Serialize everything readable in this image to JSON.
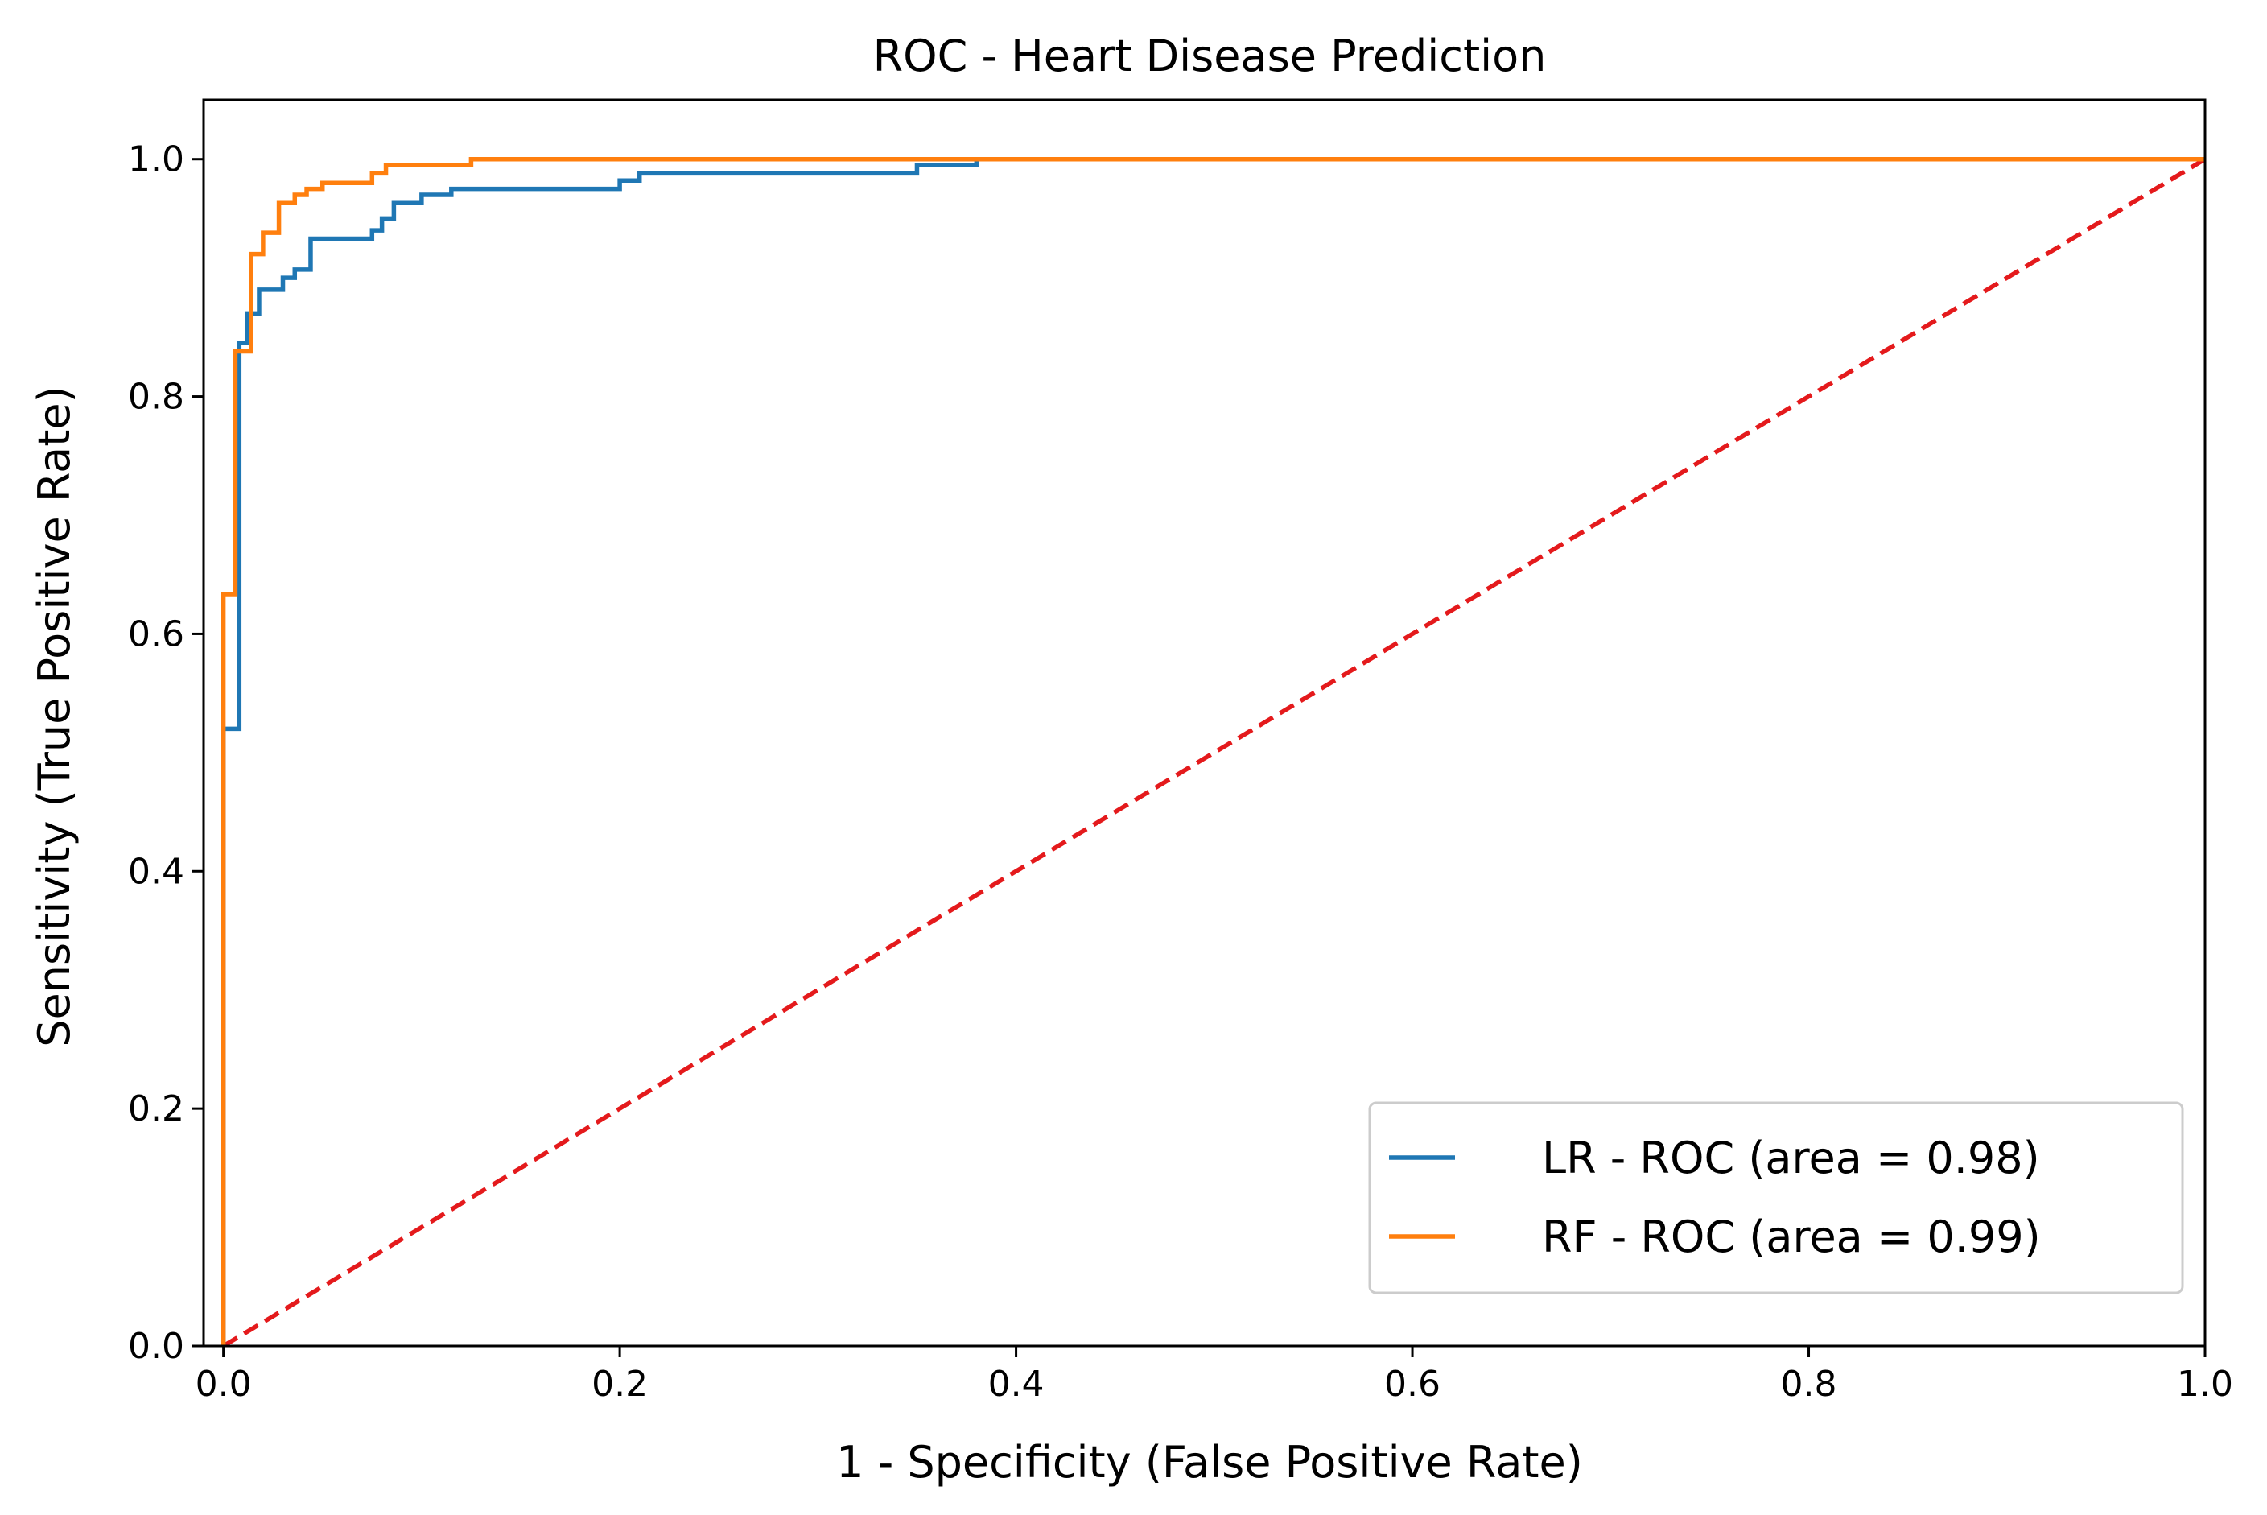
{
  "chart_data": {
    "type": "line",
    "title": "ROC - Heart Disease Prediction",
    "xlabel": "1 - Specificity (False Positive Rate)",
    "ylabel": "Sensitivity (True Positive Rate)",
    "xlim": [
      -0.01,
      1.0
    ],
    "ylim": [
      0.0,
      1.05
    ],
    "xticks": [
      0.0,
      0.2,
      0.4,
      0.6,
      0.8,
      1.0
    ],
    "xtick_labels": [
      "0.0",
      "0.2",
      "0.4",
      "0.6",
      "0.8",
      "1.0"
    ],
    "yticks": [
      0.0,
      0.2,
      0.4,
      0.6,
      0.8,
      1.0
    ],
    "ytick_labels": [
      "0.0",
      "0.2",
      "0.4",
      "0.6",
      "0.8",
      "1.0"
    ],
    "grid": false,
    "legend_position": "lower-right",
    "series": [
      {
        "name": "LR - ROC (area = 0.98)",
        "color": "#1f77b4",
        "style": "solid",
        "x": [
          0.0,
          0.0,
          0.0,
          0.008,
          0.008,
          0.012,
          0.012,
          0.018,
          0.018,
          0.022,
          0.022,
          0.03,
          0.03,
          0.036,
          0.036,
          0.044,
          0.044,
          0.075,
          0.075,
          0.08,
          0.08,
          0.086,
          0.086,
          0.1,
          0.1,
          0.115,
          0.115,
          0.2,
          0.2,
          0.21,
          0.21,
          0.35,
          0.35,
          0.38,
          0.38,
          1.0
        ],
        "y": [
          0.0,
          0.52,
          0.52,
          0.52,
          0.845,
          0.845,
          0.87,
          0.87,
          0.89,
          0.89,
          0.89,
          0.89,
          0.9,
          0.9,
          0.907,
          0.907,
          0.933,
          0.933,
          0.94,
          0.94,
          0.95,
          0.95,
          0.963,
          0.963,
          0.97,
          0.97,
          0.975,
          0.975,
          0.982,
          0.982,
          0.988,
          0.988,
          0.995,
          0.995,
          1.0,
          1.0
        ]
      },
      {
        "name": "RF - ROC (area = 0.99)",
        "color": "#ff7f0e",
        "style": "solid",
        "x": [
          0.0,
          0.0,
          0.0,
          0.006,
          0.006,
          0.008,
          0.008,
          0.014,
          0.014,
          0.02,
          0.02,
          0.028,
          0.028,
          0.036,
          0.036,
          0.042,
          0.042,
          0.05,
          0.05,
          0.075,
          0.075,
          0.082,
          0.082,
          0.1,
          0.1,
          0.125,
          0.125,
          1.0
        ],
        "y": [
          0.0,
          0.6335,
          0.6335,
          0.6335,
          0.838,
          0.838,
          0.838,
          0.838,
          0.92,
          0.92,
          0.938,
          0.938,
          0.963,
          0.963,
          0.97,
          0.97,
          0.975,
          0.975,
          0.98,
          0.98,
          0.988,
          0.988,
          0.995,
          0.995,
          0.995,
          0.995,
          1.0,
          1.0
        ]
      },
      {
        "name": "",
        "color": "#e41a1c",
        "style": "dashed",
        "x": [
          0.0,
          1.0
        ],
        "y": [
          0.0,
          1.0
        ]
      }
    ]
  }
}
